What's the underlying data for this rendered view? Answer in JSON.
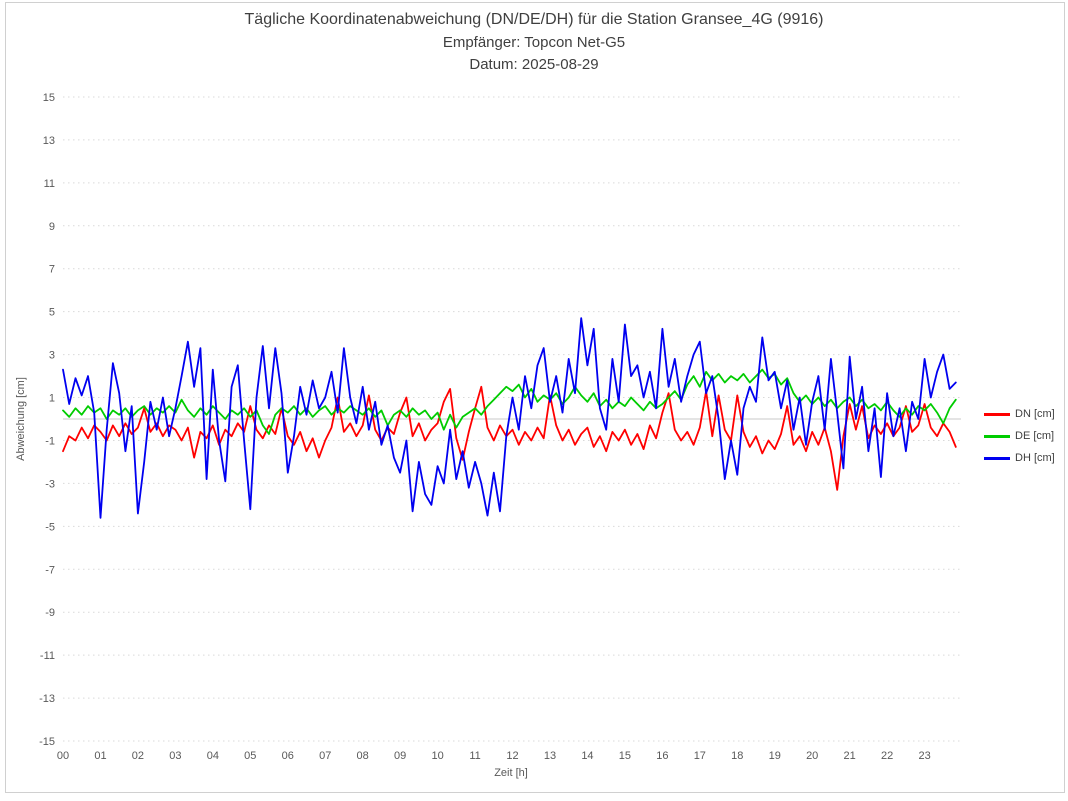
{
  "title": {
    "line1": "Tägliche Koordinatenabweichung (DN/DE/DH) für die Station Gransee_4G (9916)",
    "line2": "Empfänger: Topcon Net-G5",
    "line3": "Datum: 2025-08-29"
  },
  "chart_data": {
    "type": "line",
    "title": "Tägliche Koordinatenabweichung (DN/DE/DH) für die Station Gransee_4G (9916)",
    "subtitle": "Empfänger: Topcon Net-G5",
    "date_label": "Datum: 2025-08-29",
    "xlabel": "Zeit [h]",
    "ylabel": "Abweichung [cm]",
    "xlim": [
      0,
      24
    ],
    "ylim": [
      -15,
      15
    ],
    "x_ticks": [
      "00",
      "01",
      "02",
      "03",
      "04",
      "05",
      "06",
      "07",
      "08",
      "09",
      "10",
      "11",
      "12",
      "13",
      "14",
      "15",
      "16",
      "17",
      "18",
      "19",
      "20",
      "21",
      "22",
      "23"
    ],
    "y_ticks": [
      15,
      13,
      11,
      9,
      7,
      5,
      3,
      1,
      -1,
      -3,
      -5,
      -7,
      -9,
      -11,
      -13,
      -15
    ],
    "grid": "horizontal-dotted",
    "zero_line": true,
    "legend_position": "right",
    "sample_interval_minutes": 10,
    "colors": {
      "grid": "#d9d9d9",
      "zero_line": "#c8c8c8",
      "text": "#595959",
      "title": "#3f3f3f"
    },
    "series": [
      {
        "name": "DN [cm]",
        "color": "#ff0000",
        "values": [
          -1.5,
          -0.8,
          -1.0,
          -0.4,
          -0.9,
          -0.3,
          -0.6,
          -1.0,
          -0.3,
          -0.8,
          -0.2,
          -0.7,
          -0.4,
          0.5,
          -0.6,
          -0.2,
          -0.8,
          -0.3,
          -0.5,
          -1.0,
          -0.4,
          -1.8,
          -0.6,
          -0.9,
          -0.3,
          -1.2,
          -0.5,
          -0.8,
          -0.2,
          -0.6,
          0.6,
          -0.5,
          -0.9,
          -0.3,
          -0.7,
          0.5,
          -0.8,
          -1.2,
          -0.6,
          -1.5,
          -0.9,
          -1.8,
          -1.0,
          -0.4,
          1.0,
          -0.6,
          -0.2,
          -0.8,
          -0.3,
          1.1,
          -0.5,
          -1.0,
          -0.4,
          -0.7,
          0.3,
          1.0,
          -0.8,
          -0.2,
          -1.0,
          -0.5,
          -0.2,
          0.8,
          1.4,
          -0.9,
          -1.9,
          -0.6,
          0.5,
          1.5,
          -0.4,
          -1.0,
          -0.3,
          -0.8,
          -0.5,
          -1.2,
          -0.6,
          -1.0,
          -0.4,
          -0.9,
          1.1,
          -0.3,
          -1.0,
          -0.5,
          -1.2,
          -0.7,
          -0.4,
          -1.3,
          -0.8,
          -1.5,
          -0.6,
          -1.0,
          -0.5,
          -1.2,
          -0.7,
          -1.4,
          -0.3,
          -0.9,
          0.3,
          1.2,
          -0.5,
          -1.0,
          -0.6,
          -1.2,
          -0.4,
          1.3,
          -0.8,
          1.1,
          -0.5,
          -1.0,
          1.1,
          -0.6,
          -1.3,
          -0.8,
          -1.6,
          -1.0,
          -1.4,
          -0.7,
          0.6,
          -1.2,
          -0.8,
          -1.5,
          -0.6,
          -1.2,
          -0.4,
          -1.5,
          -3.3,
          -0.8,
          0.7,
          -0.5,
          0.6,
          -0.9,
          -0.3,
          -0.7,
          -0.2,
          -0.8,
          -0.4,
          0.6,
          -0.6,
          -0.3,
          0.7,
          -0.4,
          -0.8,
          -0.2,
          -0.6,
          -1.3
        ]
      },
      {
        "name": "DE [cm]",
        "color": "#00cc00",
        "values": [
          0.4,
          0.1,
          0.5,
          0.2,
          0.6,
          0.3,
          0.5,
          0.0,
          0.4,
          0.2,
          0.5,
          0.1,
          0.4,
          0.6,
          0.2,
          0.5,
          0.3,
          0.6,
          0.3,
          0.9,
          0.4,
          0.1,
          0.5,
          0.2,
          0.6,
          0.3,
          0.0,
          0.4,
          0.2,
          0.5,
          0.1,
          0.4,
          -0.3,
          -0.7,
          0.2,
          0.5,
          0.3,
          0.6,
          0.2,
          0.5,
          0.1,
          0.4,
          0.6,
          0.2,
          0.5,
          0.3,
          0.6,
          0.4,
          0.2,
          0.5,
          0.1,
          0.4,
          -0.3,
          0.2,
          0.4,
          0.1,
          0.5,
          0.2,
          0.4,
          0.0,
          0.3,
          -0.5,
          0.2,
          -0.4,
          0.1,
          0.3,
          0.5,
          0.2,
          0.6,
          0.9,
          1.2,
          1.5,
          1.3,
          1.6,
          1.0,
          1.4,
          0.8,
          1.1,
          0.9,
          1.2,
          0.7,
          1.0,
          1.5,
          1.1,
          0.8,
          1.2,
          0.6,
          0.9,
          0.5,
          0.8,
          0.6,
          1.0,
          0.7,
          0.4,
          0.8,
          0.5,
          0.7,
          1.0,
          1.3,
          0.9,
          1.6,
          2.0,
          1.5,
          2.2,
          1.8,
          2.1,
          1.7,
          2.0,
          1.8,
          2.1,
          1.7,
          2.0,
          2.3,
          1.9,
          2.1,
          1.6,
          1.9,
          1.2,
          0.8,
          1.1,
          0.7,
          1.0,
          0.6,
          0.9,
          0.5,
          0.8,
          1.0,
          0.6,
          0.9,
          0.5,
          0.7,
          0.4,
          0.8,
          0.4,
          0.1,
          0.5,
          0.2,
          0.6,
          0.4,
          0.7,
          0.3,
          -0.2,
          0.5,
          0.9
        ]
      },
      {
        "name": "DH [cm]",
        "color": "#0000f0",
        "values": [
          2.3,
          0.7,
          1.9,
          1.1,
          2.0,
          0.3,
          -4.6,
          -0.5,
          2.6,
          1.2,
          -1.5,
          0.6,
          -4.4,
          -2.0,
          0.8,
          -0.5,
          1.0,
          -0.8,
          0.5,
          2.0,
          3.6,
          1.5,
          3.3,
          -2.8,
          2.3,
          -1.0,
          -2.9,
          1.5,
          2.5,
          -1.0,
          -4.2,
          1.0,
          3.4,
          0.5,
          3.3,
          1.2,
          -2.5,
          -0.8,
          1.5,
          0.2,
          1.8,
          0.5,
          1.0,
          2.2,
          0.3,
          3.3,
          1.0,
          -0.2,
          1.5,
          -0.5,
          0.8,
          -1.2,
          -0.3,
          -1.8,
          -2.5,
          -1.0,
          -4.3,
          -2.0,
          -3.5,
          -4.0,
          -2.2,
          -3.0,
          -0.5,
          -2.8,
          -1.5,
          -3.2,
          -2.0,
          -3.0,
          -4.5,
          -2.5,
          -4.3,
          -0.8,
          1.0,
          -0.5,
          2.0,
          0.5,
          2.5,
          3.3,
          0.8,
          2.0,
          0.3,
          2.8,
          1.2,
          4.7,
          2.5,
          4.2,
          0.5,
          -0.5,
          2.8,
          0.8,
          4.4,
          2.0,
          2.5,
          1.0,
          2.2,
          0.5,
          4.2,
          1.5,
          2.8,
          0.8,
          2.0,
          3.0,
          3.6,
          1.2,
          2.0,
          0.0,
          -2.8,
          -1.0,
          -2.6,
          0.5,
          1.5,
          0.8,
          3.8,
          1.8,
          2.2,
          0.5,
          1.8,
          -0.5,
          1.0,
          -1.2,
          0.8,
          2.0,
          -0.5,
          2.8,
          0.3,
          -2.3,
          2.9,
          0.0,
          1.5,
          -1.5,
          0.5,
          -2.7,
          1.2,
          -0.8,
          0.5,
          -1.5,
          0.8,
          0.0,
          2.8,
          1.0,
          2.2,
          3.0,
          1.4,
          1.7
        ]
      }
    ]
  }
}
